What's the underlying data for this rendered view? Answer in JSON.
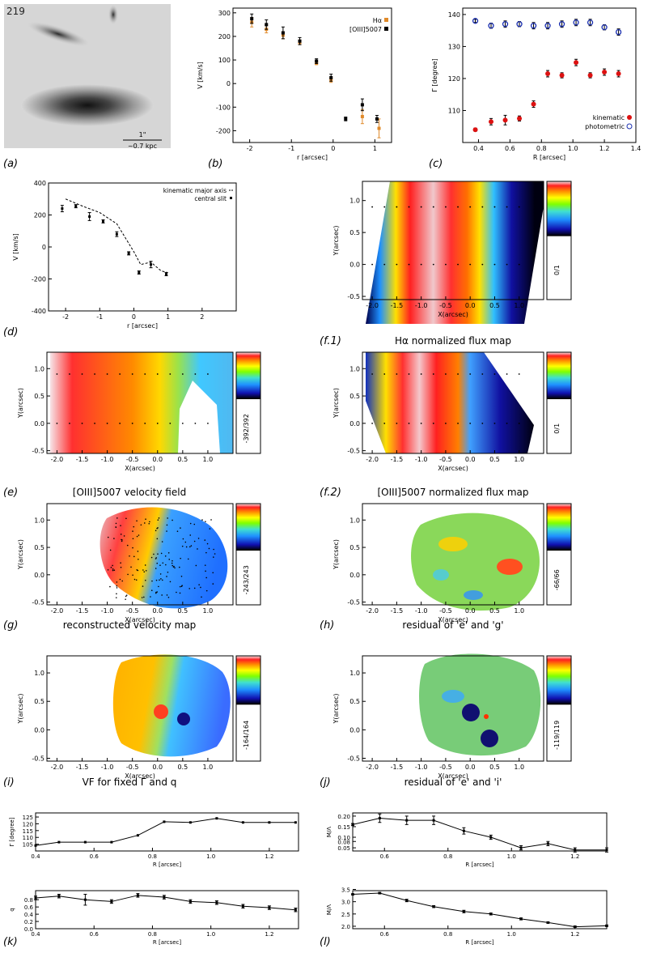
{
  "figure_id": "219",
  "scalebar": {
    "top": "1\"",
    "bottom": "~0.7 kpc"
  },
  "panel_labels": [
    "(a)",
    "(b)",
    "(c)",
    "(d)",
    "(f.1)",
    "(e)",
    "(f.2)",
    "(g)",
    "(h)",
    "(i)",
    "(j)",
    "(k)",
    "(l)"
  ],
  "map_titles": {
    "f1": "Hα normalized flux map",
    "e": "[OIII]5007 velocity field",
    "f2": "[OIII]5007 normalized flux map",
    "g": "reconstructed velocity map",
    "h": "residual of 'e' and 'g'",
    "i": "VF for fixed Γ and q",
    "j": "residual of 'e' and 'i'"
  },
  "colorbar_labels": {
    "f1": "0/1",
    "e": "-392/392",
    "f2": "0/1",
    "g": "-243/243",
    "h": "-66/66",
    "i": "-164/164",
    "j": "-119/119"
  },
  "chart_data": [
    {
      "id": "b",
      "type": "scatter",
      "xlabel": "r [arcsec]",
      "ylabel": "V [km/s]",
      "xlim": [
        -2.4,
        1.4
      ],
      "ylim": [
        -250,
        320
      ],
      "xticks": [
        "-2",
        "-1",
        "0",
        "1"
      ],
      "xtick_values": [
        -2,
        -1,
        0,
        1
      ],
      "yticks": [
        "-200",
        "-100",
        "0",
        "100",
        "200",
        "300"
      ],
      "ytick_values": [
        -200,
        -100,
        0,
        100,
        200,
        300
      ],
      "legend": [
        "Hα",
        "[OIII]5007"
      ],
      "series": [
        {
          "name": "Hα",
          "color": "#e08a2a",
          "x": [
            -1.95,
            -1.6,
            -1.2,
            -0.8,
            -0.4,
            -0.05,
            0.7,
            1.1
          ],
          "y": [
            260,
            230,
            205,
            175,
            88,
            15,
            -140,
            -190
          ],
          "err": [
            20,
            15,
            15,
            10,
            8,
            10,
            30,
            40
          ]
        },
        {
          "name": "[OIII]5007",
          "color": "#000000",
          "x": [
            -1.95,
            -1.6,
            -1.2,
            -0.8,
            -0.4,
            -0.05,
            0.3,
            0.7,
            1.05
          ],
          "y": [
            275,
            250,
            215,
            180,
            95,
            25,
            -150,
            -90,
            -150
          ],
          "err": [
            20,
            20,
            25,
            15,
            10,
            15,
            8,
            25,
            15
          ]
        }
      ]
    },
    {
      "id": "c",
      "type": "scatter",
      "xlabel": "R [arcsec]",
      "ylabel": "Γ [degree]",
      "xlim": [
        0.3,
        1.4
      ],
      "ylim": [
        100,
        142
      ],
      "xticks": [
        "0.4",
        "0.6",
        "0.8",
        "1.0",
        "1.2",
        "1.4"
      ],
      "xtick_values": [
        0.4,
        0.6,
        0.8,
        1.0,
        1.2,
        1.4
      ],
      "yticks": [
        "110",
        "120",
        "130",
        "140"
      ],
      "ytick_values": [
        110,
        120,
        130,
        140
      ],
      "legend": [
        "kinematic",
        "photometric"
      ],
      "series": [
        {
          "name": "kinematic",
          "color": "#dd1111",
          "x": [
            0.38,
            0.48,
            0.57,
            0.66,
            0.75,
            0.84,
            0.93,
            1.02,
            1.11,
            1.2,
            1.29
          ],
          "y": [
            104,
            106.5,
            107,
            107.5,
            112,
            121.5,
            121,
            125,
            121,
            122,
            121.5
          ],
          "err": [
            0.5,
            1,
            1.5,
            0.8,
            1,
            1,
            0.8,
            1,
            0.8,
            1,
            1
          ]
        },
        {
          "name": "photometric",
          "color": "#1a2fb0",
          "x": [
            0.38,
            0.48,
            0.57,
            0.66,
            0.75,
            0.84,
            0.93,
            1.02,
            1.11,
            1.2,
            1.29
          ],
          "y": [
            138,
            136.5,
            137,
            137,
            136.5,
            136.5,
            137,
            137.5,
            137.5,
            136,
            134.5
          ],
          "err": [
            0.5,
            0.8,
            1,
            0.8,
            1,
            1,
            1,
            1,
            1,
            0.8,
            1
          ]
        }
      ]
    },
    {
      "id": "d",
      "type": "line",
      "xlabel": "r [arcsec]",
      "ylabel": "V [km/s]",
      "xlim": [
        -2.5,
        3.0
      ],
      "ylim": [
        -400,
        400
      ],
      "xticks": [
        "-2",
        "-1",
        "0",
        "1",
        "2"
      ],
      "xtick_values": [
        -2,
        -1,
        0,
        1,
        2
      ],
      "yticks": [
        "-400",
        "-200",
        "0",
        "200",
        "400"
      ],
      "ytick_values": [
        -400,
        -200,
        0,
        200,
        400
      ],
      "legend": [
        "kinematic major axis",
        "central slit"
      ],
      "series": [
        {
          "name": "kinematic major axis",
          "style": "dashed",
          "x": [
            -2.0,
            -1.5,
            -1.0,
            -0.5,
            -0.2,
            0.0,
            0.2,
            0.5,
            0.8,
            1.0
          ],
          "y": [
            300,
            255,
            215,
            145,
            40,
            -30,
            -110,
            -95,
            -150,
            -160
          ]
        },
        {
          "name": "central slit",
          "style": "points",
          "x": [
            -2.1,
            -1.7,
            -1.3,
            -0.9,
            -0.5,
            -0.15,
            0.15,
            0.5,
            0.95
          ],
          "y": [
            240,
            255,
            190,
            160,
            80,
            -40,
            -160,
            -110,
            -170
          ],
          "err": [
            20,
            10,
            25,
            10,
            15,
            10,
            10,
            20,
            10
          ]
        }
      ]
    },
    {
      "id": "k_gamma",
      "type": "line",
      "xlabel": "R [arcsec]",
      "ylabel": "Γ [degree]",
      "xlim": [
        0.4,
        1.3
      ],
      "ylim": [
        100,
        128
      ],
      "xticks": [
        "0.4",
        "0.6",
        "0.8",
        "1.0",
        "1.2"
      ],
      "xtick_values": [
        0.4,
        0.6,
        0.8,
        1.0,
        1.2
      ],
      "yticks": [
        "105",
        "110",
        "115",
        "120",
        "125"
      ],
      "ytick_values": [
        105,
        110,
        115,
        120,
        125
      ],
      "x": [
        0.4,
        0.48,
        0.57,
        0.66,
        0.75,
        0.84,
        0.93,
        1.02,
        1.11,
        1.2,
        1.29
      ],
      "y": [
        104,
        106.5,
        106.5,
        106.5,
        111.5,
        121.5,
        121,
        124,
        121,
        121,
        121
      ]
    },
    {
      "id": "l_sigma",
      "type": "line",
      "xlabel": "R [arcsec]",
      "ylabel": "M/Λ",
      "xlim": [
        0.5,
        1.3
      ],
      "ylim": [
        0.035,
        0.215
      ],
      "xticks": [
        "0.6",
        "0.8",
        "1.0",
        "1.2"
      ],
      "xtick_values": [
        0.6,
        0.8,
        1.0,
        1.2
      ],
      "yticks": [
        "0.05",
        "0.08",
        "0.10",
        "0.15",
        "0.20"
      ],
      "ytick_values": [
        0.05,
        0.08,
        0.1,
        0.15,
        0.2
      ],
      "x": [
        0.5,
        0.585,
        0.67,
        0.755,
        0.85,
        0.935,
        1.03,
        1.115,
        1.2,
        1.3
      ],
      "y": [
        0.16,
        0.19,
        0.18,
        0.18,
        0.13,
        0.1,
        0.05,
        0.07,
        0.04,
        0.04
      ],
      "err": [
        0.005,
        0.02,
        0.02,
        0.02,
        0.015,
        0.01,
        0.01,
        0.01,
        0.01,
        0.01
      ]
    },
    {
      "id": "k_q",
      "type": "line",
      "xlabel": "R [arcsec]",
      "ylabel": "q",
      "xlim": [
        0.4,
        1.3
      ],
      "ylim": [
        0.0,
        1.05
      ],
      "xticks": [
        "0.4",
        "0.6",
        "0.8",
        "1.0",
        "1.2"
      ],
      "xtick_values": [
        0.4,
        0.6,
        0.8,
        1.0,
        1.2
      ],
      "yticks": [
        "0.0",
        "0.2",
        "0.4",
        "0.6",
        "0.8"
      ],
      "ytick_values": [
        0.0,
        0.2,
        0.4,
        0.6,
        0.8
      ],
      "x": [
        0.4,
        0.48,
        0.57,
        0.66,
        0.75,
        0.84,
        0.93,
        1.02,
        1.11,
        1.2,
        1.29
      ],
      "y": [
        0.85,
        0.9,
        0.8,
        0.75,
        0.92,
        0.87,
        0.75,
        0.72,
        0.62,
        0.58,
        0.52
      ],
      "err": [
        0.05,
        0.05,
        0.15,
        0.05,
        0.05,
        0.05,
        0.05,
        0.05,
        0.05,
        0.05,
        0.05
      ]
    },
    {
      "id": "l_mass",
      "type": "line",
      "xlabel": "R [arcsec]",
      "ylabel": "M/Λ",
      "xlim": [
        0.5,
        1.3
      ],
      "ylim": [
        1.9,
        3.45
      ],
      "xticks": [
        "0.6",
        "0.8",
        "1.0",
        "1.2"
      ],
      "xtick_values": [
        0.6,
        0.8,
        1.0,
        1.2
      ],
      "yticks": [
        "2.0",
        "2.5",
        "3.0",
        "3.5"
      ],
      "ytick_values": [
        2.0,
        2.5,
        3.0,
        3.5
      ],
      "x": [
        0.5,
        0.585,
        0.67,
        0.755,
        0.85,
        0.935,
        1.03,
        1.115,
        1.2,
        1.3
      ],
      "y": [
        3.3,
        3.35,
        3.05,
        2.8,
        2.6,
        2.5,
        2.3,
        2.15,
        1.98,
        2.02
      ],
      "err": [
        0.02,
        0.03,
        0.05,
        0.04,
        0.05,
        0.04,
        0.04,
        0.03,
        0.03,
        0.03
      ]
    },
    {
      "id": "maps",
      "type": "heatmap",
      "xlabel": "X(arcsec)",
      "ylabel": "Y(arcsec)",
      "xticks": [
        "-2.0",
        "-1.5",
        "-1.0",
        "-0.5",
        "0.0",
        "0.5",
        "1.0"
      ],
      "xtick_values": [
        -2.0,
        -1.5,
        -1.0,
        -0.5,
        0.0,
        0.5,
        1.0
      ],
      "yticks": [
        "-0.5",
        "0.0",
        "0.5",
        "1.0"
      ],
      "ytick_values": [
        -0.5,
        0.0,
        0.5,
        1.0
      ],
      "xlim": [
        -2.2,
        1.5
      ],
      "ylim": [
        -0.55,
        1.3
      ]
    }
  ]
}
